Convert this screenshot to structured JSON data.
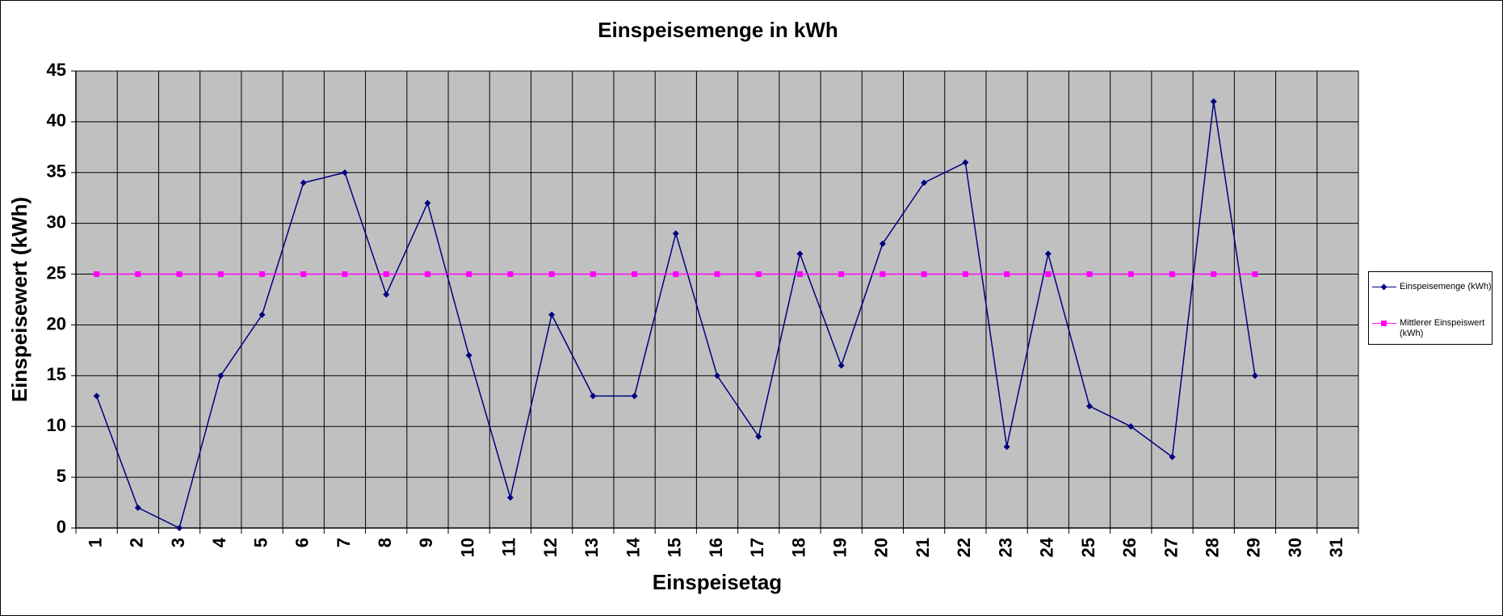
{
  "chart_data": {
    "type": "line",
    "title": "Einspeisemenge in kWh",
    "x_label": "Einspeisetag",
    "y_label": "Einspeisewert  (kWh)",
    "categories": [
      "1",
      "2",
      "3",
      "4",
      "5",
      "6",
      "7",
      "8",
      "9",
      "10",
      "11",
      "12",
      "13",
      "14",
      "15",
      "16",
      "17",
      "18",
      "19",
      "20",
      "21",
      "22",
      "23",
      "24",
      "25",
      "26",
      "27",
      "28",
      "29",
      "30",
      "31"
    ],
    "series": [
      {
        "name": "Einspeisemenge (kWh)",
        "color": "#000080",
        "marker": "diamond",
        "values": [
          13,
          2,
          0,
          15,
          21,
          34,
          35,
          23,
          32,
          17,
          3,
          21,
          13,
          13,
          29,
          15,
          9,
          27,
          16,
          28,
          34,
          36,
          8,
          27,
          12,
          10,
          7,
          42,
          15,
          null,
          null
        ]
      },
      {
        "name": "Mittlerer Einspeiswert (kWh)",
        "color": "#ff00ff",
        "marker": "square",
        "values": [
          25,
          25,
          25,
          25,
          25,
          25,
          25,
          25,
          25,
          25,
          25,
          25,
          25,
          25,
          25,
          25,
          25,
          25,
          25,
          25,
          25,
          25,
          25,
          25,
          25,
          25,
          25,
          25,
          25,
          null,
          null
        ]
      }
    ],
    "ylim": [
      0,
      45
    ],
    "yticks": [
      0,
      5,
      10,
      15,
      20,
      25,
      30,
      35,
      40,
      45
    ],
    "grid": true,
    "legend": "right"
  }
}
